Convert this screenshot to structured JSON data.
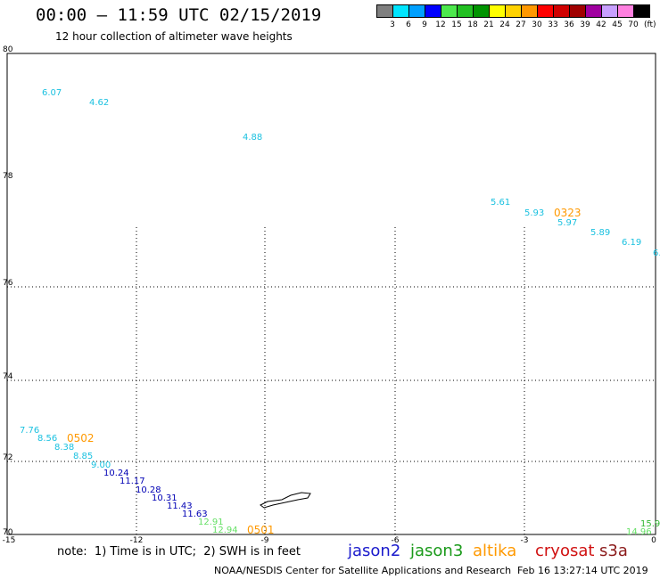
{
  "header": {
    "title": "00:00 – 11:59 UTC 02/15/2019",
    "subtitle": "12 hour collection of altimeter wave heights"
  },
  "colorbar": {
    "colors": [
      "#7f7f7f",
      "#00e5ff",
      "#00a0ff",
      "#0000ff",
      "#4ce84c",
      "#22c022",
      "#009400",
      "#ffff00",
      "#ffd200",
      "#ff9800",
      "#ff0000",
      "#d00000",
      "#a00000",
      "#a000a0",
      "#c8a0ff",
      "#ff80e0",
      "#000000"
    ],
    "labels": [
      "3",
      "6",
      "9",
      "12",
      "15",
      "18",
      "21",
      "24",
      "27",
      "30",
      "33",
      "36",
      "39",
      "42",
      "45",
      "70"
    ],
    "unit": "(ft)"
  },
  "map": {
    "lat_labels": [
      "80",
      "78",
      "76",
      "74",
      "72",
      "70"
    ],
    "lon_labels": [
      "-15",
      "-12",
      "-9",
      "-6",
      "-3",
      "0"
    ],
    "readings": [
      {
        "text": "6.07",
        "color": "#1bc1e0"
      },
      {
        "text": "4.62",
        "color": "#1bc1e0"
      },
      {
        "text": "4.88",
        "color": "#1bc1e0"
      },
      {
        "text": "5.61",
        "color": "#1bc1e0"
      },
      {
        "text": "5.93",
        "color": "#1bc1e0"
      },
      {
        "text": "5.97",
        "color": "#1bc1e0"
      },
      {
        "text": "5.89",
        "color": "#1bc1e0"
      },
      {
        "text": "6.19",
        "color": "#1bc1e0"
      },
      {
        "text": "6.",
        "color": "#1bc1e0"
      },
      {
        "text": "7.76",
        "color": "#1bc1e0"
      },
      {
        "text": "8.56",
        "color": "#1bc1e0"
      },
      {
        "text": "8.38",
        "color": "#1bc1e0"
      },
      {
        "text": "8.85",
        "color": "#1bc1e0"
      },
      {
        "text": "9.00",
        "color": "#1bc1e0"
      },
      {
        "text": "10.24",
        "color": "#0000b4"
      },
      {
        "text": "11.17",
        "color": "#0000b4"
      },
      {
        "text": "10.28",
        "color": "#0000b4"
      },
      {
        "text": "10.31",
        "color": "#0000b4"
      },
      {
        "text": "11.43",
        "color": "#0000b4"
      },
      {
        "text": "11.63",
        "color": "#0000b4"
      },
      {
        "text": "12.91",
        "color": "#66e066"
      },
      {
        "text": "12.94",
        "color": "#66e066"
      },
      {
        "text": "15.9",
        "color": "#33b833"
      },
      {
        "text": "14.96",
        "color": "#66e066"
      }
    ],
    "times": [
      {
        "text": "0323",
        "color": "#ff9900"
      },
      {
        "text": "0502",
        "color": "#ff9900"
      },
      {
        "text": "0501",
        "color": "#ff9900"
      }
    ]
  },
  "footer": {
    "note": "note:  1) Time is in UTC;  2) SWH is in feet",
    "satellites": [
      {
        "name": "jason2",
        "color": "#1a1acc"
      },
      {
        "name": "jason3",
        "color": "#1a9a1a"
      },
      {
        "name": "altika",
        "color": "#ff9900"
      },
      {
        "name": "cryosat",
        "color": "#d01010"
      },
      {
        "name": "s3a",
        "color": "#8b1a1a"
      }
    ],
    "credit": "NOAA/NESDIS Center for Satellite Applications and Research",
    "timestamp": "Feb 16 13:27:14 UTC 2019"
  }
}
